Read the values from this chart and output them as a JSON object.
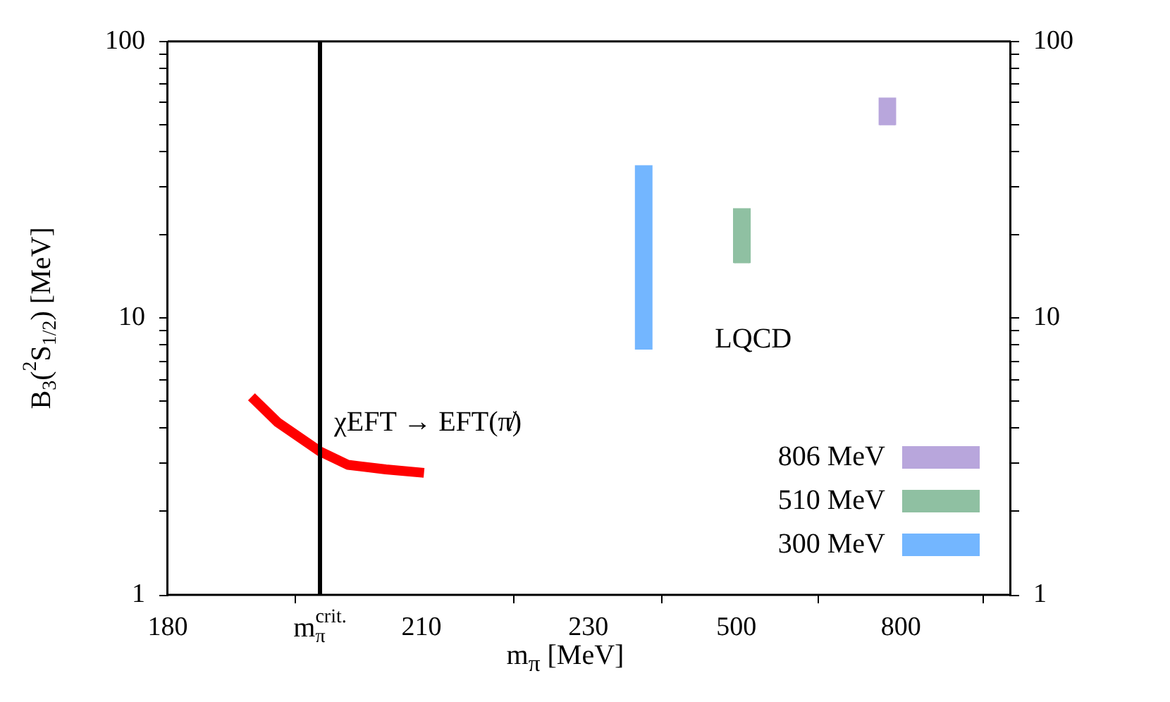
{
  "chart_data": [
    {
      "type": "line",
      "ylabel": "B$_{3}$($^{2}$S$_{1/2}$) [MeV]",
      "xlim": [
        180,
        220
      ],
      "xticks": [
        180,
        210
      ],
      "ylim": [
        1,
        100
      ],
      "yticks": [
        1,
        {
          "value": 2,
          "label": null
        },
        {
          "value": 3,
          "label": null
        },
        {
          "value": 4,
          "label": null
        },
        {
          "value": 5,
          "label": null
        },
        {
          "value": 6,
          "label": null
        },
        {
          "value": 7,
          "label": null
        },
        {
          "value": 8,
          "label": null
        },
        {
          "value": 9,
          "label": null
        },
        10,
        {
          "value": 20,
          "label": null
        },
        {
          "value": 30,
          "label": null
        },
        {
          "value": 40,
          "label": null
        },
        {
          "value": 50,
          "label": null
        },
        {
          "value": 60,
          "label": null
        },
        {
          "value": 70,
          "label": null
        },
        {
          "value": 80,
          "label": null
        },
        {
          "value": 90,
          "label": null
        },
        100
      ],
      "log": "y",
      "marker": "none",
      "line_style": "solid",
      "series": [
        {
          "color": "#ff0000",
          "x": [
            189.9,
            193,
            198,
            201.3,
            205.8,
            210.3
          ],
          "values": [
            5.2,
            4.2,
            3.3,
            2.95,
            2.84,
            2.76
          ]
        }
      ],
      "ref_lines": [
        {
          "axis": "x",
          "value": 198,
          "label": "m$_{π}$$^{crit.}$",
          "color": "#000000"
        }
      ],
      "annotations": [
        "χEFT → EFT(π̸)"
      ]
    },
    {
      "type": "bar",
      "xlabel": "m$_{π}$ [MeV]",
      "xlim": [
        80,
        1000
      ],
      "xticks": [
        230,
        500,
        800
      ],
      "y2lim": [
        1,
        100
      ],
      "y2ticks": [
        1,
        {
          "value": 2,
          "label": null
        },
        {
          "value": 3,
          "label": null
        },
        {
          "value": 4,
          "label": null
        },
        {
          "value": 5,
          "label": null
        },
        {
          "value": 6,
          "label": null
        },
        {
          "value": 7,
          "label": null
        },
        {
          "value": 8,
          "label": null
        },
        {
          "value": 9,
          "label": null
        },
        10,
        {
          "value": 20,
          "label": null
        },
        {
          "value": 30,
          "label": null
        },
        {
          "value": 40,
          "label": null
        },
        {
          "value": 50,
          "label": null
        },
        {
          "value": 60,
          "label": null
        },
        {
          "value": 70,
          "label": null
        },
        {
          "value": 80,
          "label": null
        },
        {
          "value": 90,
          "label": null
        },
        100
      ],
      "log": "y2",
      "legend": "bottom right",
      "series": [
        {
          "name": "806 MeV",
          "axis": "y2",
          "color": "#b8a6dc",
          "x": [
            806
          ],
          "base": [
            49.8
          ],
          "values": [
            12.7
          ]
        },
        {
          "name": "510 MeV",
          "axis": "y2",
          "color": "#8fc0a2",
          "x": [
            510
          ],
          "base": [
            15.8
          ],
          "values": [
            9.1
          ]
        },
        {
          "name": "300 MeV",
          "axis": "y2",
          "color": "#73b6ff",
          "x": [
            300
          ],
          "base": [
            7.7
          ],
          "values": [
            27.9
          ]
        }
      ],
      "annotations": [
        "LQCD"
      ]
    }
  ]
}
